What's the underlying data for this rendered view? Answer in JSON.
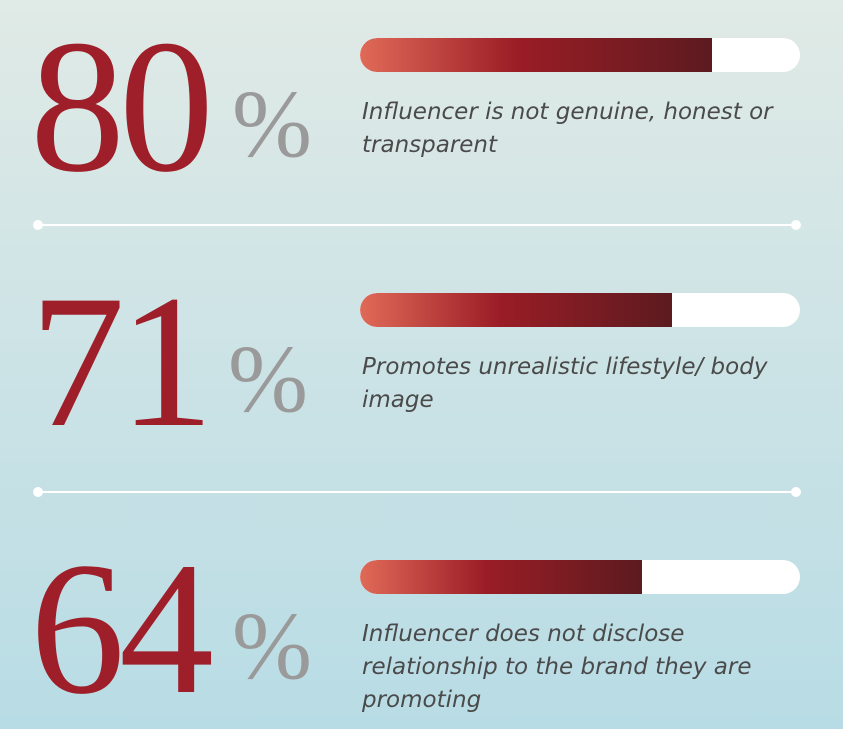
{
  "chart_data": {
    "type": "bar",
    "orientation": "horizontal",
    "categories": [
      "Influencer is not genuine, honest or transparent",
      "Promotes unrealistic lifestyle/ body image",
      "Influencer does not disclose relationship to the brand they are promoting"
    ],
    "values": [
      80,
      71,
      64
    ],
    "unit": "%",
    "xlim": [
      0,
      100
    ],
    "color": "#9a1c26"
  }
}
